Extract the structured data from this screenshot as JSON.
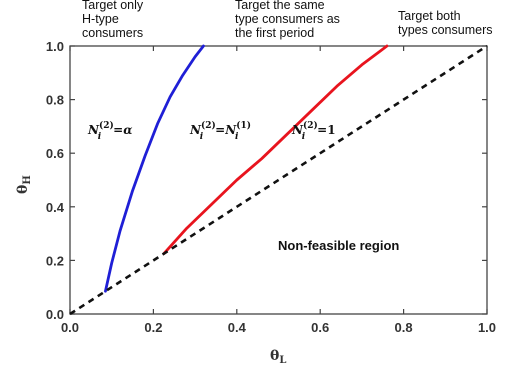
{
  "chart_data": {
    "type": "line",
    "xlabel_main": "θ",
    "xlabel_sub": "L",
    "ylabel_main": "θ",
    "ylabel_sub": "H",
    "xlim": [
      0,
      1
    ],
    "ylim": [
      0,
      1
    ],
    "x_ticks": [
      "0.0",
      "0.2",
      "0.4",
      "0.6",
      "0.8",
      "1.0"
    ],
    "y_ticks": [
      "0.0",
      "0.2",
      "0.4",
      "0.6",
      "0.8",
      "1.0"
    ],
    "grid": false,
    "top_labels": {
      "left": [
        "Target only",
        "H-type",
        "consumers"
      ],
      "middle": [
        "Target the same",
        "type consumers as",
        "the first period"
      ],
      "right": [
        "Target both",
        "types consumers"
      ]
    },
    "region_labels": {
      "alpha": {
        "sym": "N",
        "sub": "i",
        "sup": "(2)",
        "eq": "=",
        "rhs": "α"
      },
      "same": {
        "sym": "N",
        "sub": "i",
        "sup": "(2)",
        "eq": "=",
        "rhs_sym": "N",
        "rhs_sub": "i",
        "rhs_sup": "(1)"
      },
      "one": {
        "sym": "N",
        "sub": "i",
        "sup": "(2)",
        "eq": "=",
        "rhs": "1"
      },
      "infeasible": "Non-feasible region"
    },
    "series": [
      {
        "color": "#1f1fd6",
        "style": "solid",
        "x": [
          0.085,
          0.1,
          0.12,
          0.15,
          0.18,
          0.21,
          0.24,
          0.27,
          0.3,
          0.32
        ],
        "y": [
          0.085,
          0.19,
          0.31,
          0.46,
          0.59,
          0.71,
          0.81,
          0.89,
          0.96,
          1.0
        ]
      },
      {
        "color": "#e8141e",
        "style": "solid",
        "x": [
          0.225,
          0.28,
          0.34,
          0.4,
          0.46,
          0.52,
          0.58,
          0.64,
          0.7,
          0.76
        ],
        "y": [
          0.225,
          0.32,
          0.41,
          0.5,
          0.58,
          0.67,
          0.76,
          0.85,
          0.93,
          1.0
        ]
      },
      {
        "color": "#111111",
        "style": "dashed",
        "x": [
          0,
          1
        ],
        "y": [
          0,
          1
        ]
      }
    ]
  }
}
